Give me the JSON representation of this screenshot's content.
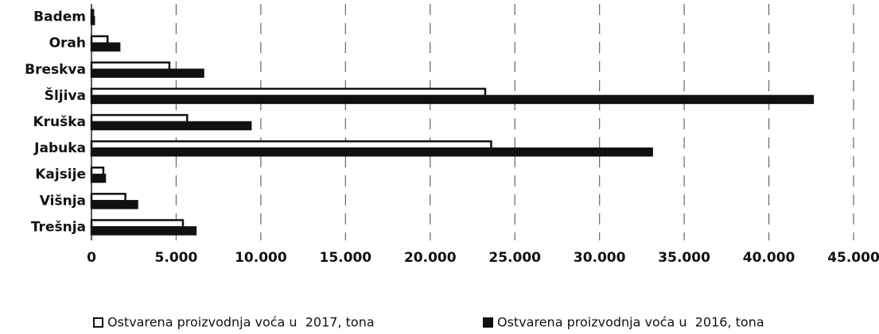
{
  "chart_data": {
    "type": "barh",
    "categories": [
      "Badem",
      "Orah",
      "Breskva",
      "Šljiva",
      "Kruška",
      "Jabuka",
      "Kajsije",
      "Višnja",
      "Trešnja"
    ],
    "series": [
      {
        "name": "Ostvarena proizvodnja voća u  2017, tona",
        "color": "#ffffff",
        "values": [
          100,
          950,
          4600,
          23250,
          5650,
          23600,
          700,
          2000,
          5400
        ]
      },
      {
        "name": "Ostvarena proizvodnja voća u  2016, tona",
        "color": "#111111",
        "values": [
          150,
          1650,
          6600,
          42600,
          9400,
          33100,
          800,
          2700,
          6150
        ]
      }
    ],
    "xlim": [
      0,
      45000
    ],
    "xticks": [
      0,
      {
        "value": 5000,
        "label": "5.000"
      },
      {
        "value": 10000,
        "label": "10.000"
      },
      {
        "value": 15000,
        "label": "15.000"
      },
      {
        "value": 20000,
        "label": "20.000"
      },
      {
        "value": 25000,
        "label": "25.000"
      },
      {
        "value": 30000,
        "label": "30.000"
      },
      {
        "value": 35000,
        "label": "35.000"
      },
      {
        "value": 40000,
        "label": "40.000"
      },
      {
        "value": 45000,
        "label": "45.000"
      }
    ],
    "grid": true,
    "legend": "bottom"
  }
}
